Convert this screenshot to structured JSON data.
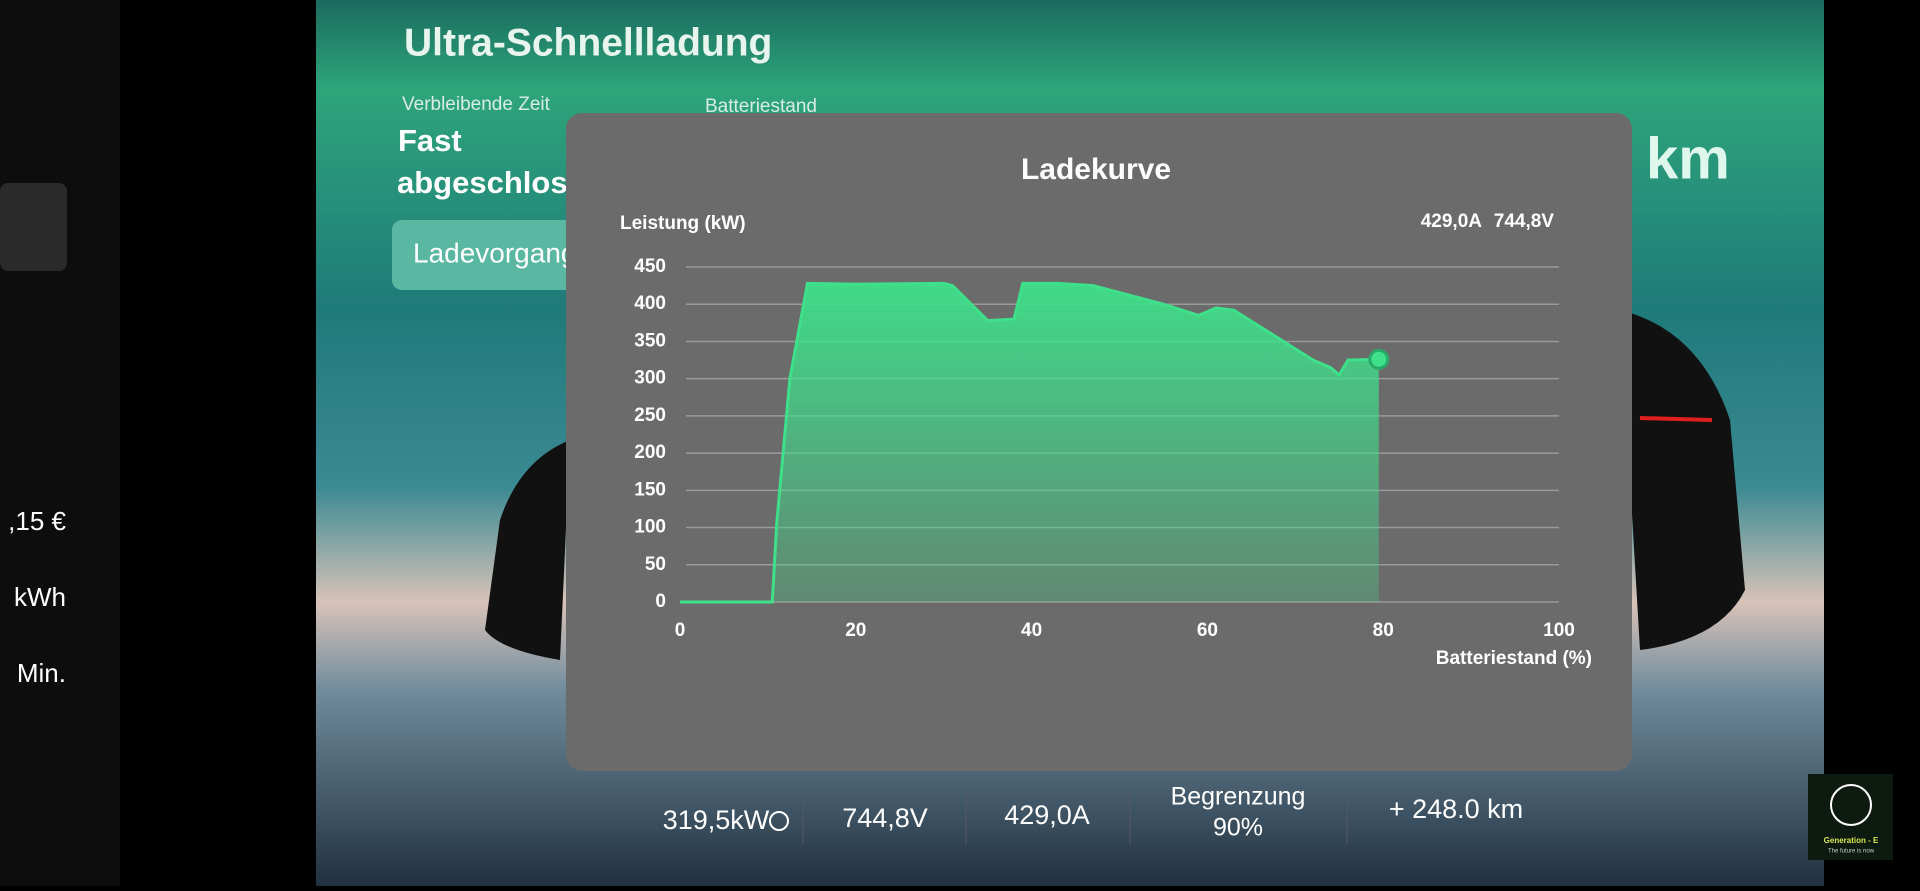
{
  "header": {
    "title": "Ultra-Schnellladung"
  },
  "info": {
    "time_label": "Verbleibende Zeit",
    "time_value": [
      "Fast",
      "abgeschloss"
    ],
    "battery_label": "Batteriestand",
    "button": "Ladevorgang",
    "range_unit": "km"
  },
  "left": {
    "items": [
      ",15 €",
      "kWh",
      "Min."
    ]
  },
  "chart_data": {
    "type": "line",
    "title": "Ladekurve",
    "ylabel": "Leistung (kW)",
    "xlabel": "Batteriestand (%)",
    "status": [
      "429,0A",
      "744,8V"
    ],
    "x": [
      0,
      10.5,
      11,
      12.5,
      14.5,
      20,
      30,
      31,
      35,
      38,
      39,
      43,
      47,
      55,
      59,
      61,
      63,
      68,
      72,
      74,
      75,
      76,
      79.5
    ],
    "values": [
      0,
      0,
      105,
      300,
      428,
      427,
      428,
      425,
      378,
      380,
      428,
      428,
      425,
      400,
      385,
      395,
      392,
      355,
      325,
      315,
      305,
      325,
      326
    ],
    "color": "#3ee08a",
    "xlim": [
      0,
      100
    ],
    "ylim": [
      0,
      450
    ],
    "xticks": [
      0,
      20,
      40,
      60,
      80,
      100
    ],
    "yticks": [
      0,
      50,
      100,
      150,
      200,
      250,
      300,
      350,
      400,
      450
    ],
    "grid": true
  },
  "stats": {
    "power": "319,5kW",
    "voltage": "744,8V",
    "current": "429,0A",
    "limit_label": "Begrenzung",
    "limit_value": "90%",
    "range": "+ 248.0 km"
  },
  "logo": {
    "name": "Generation - E",
    "tagline": "The future is now"
  }
}
